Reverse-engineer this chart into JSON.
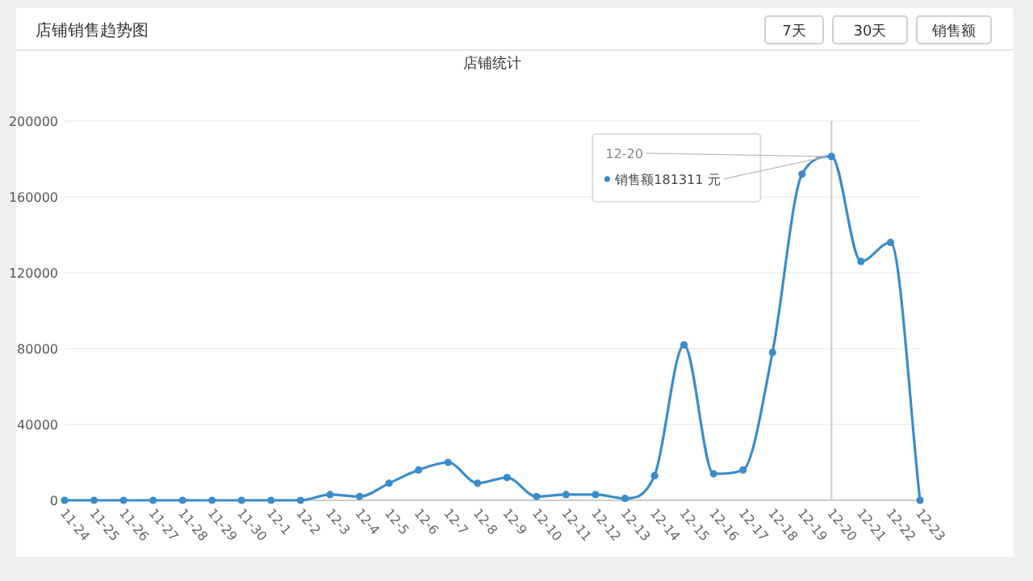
{
  "chart_data": {
    "type": "line",
    "title": "店铺销售趋势图",
    "subtitle": "店铺统计",
    "categories": [
      "11-24",
      "11-25",
      "11-26",
      "11-27",
      "11-28",
      "11-29",
      "11-30",
      "12-1",
      "12-2",
      "12-3",
      "12-4",
      "12-5",
      "12-6",
      "12-7",
      "12-8",
      "12-9",
      "12-10",
      "12-11",
      "12-12",
      "12-13",
      "12-14",
      "12-15",
      "12-16",
      "12-17",
      "12-18",
      "12-19",
      "12-20",
      "12-21",
      "12-22",
      "12-23"
    ],
    "series": [
      {
        "color": "#3a8ccb",
        "values": [
          0,
          0,
          0,
          0,
          0,
          0,
          0,
          0,
          0,
          3000,
          2000,
          9000,
          16000,
          20000,
          9000,
          12000,
          2000,
          3000,
          3000,
          1000,
          13000,
          82000,
          14000,
          16000,
          78000,
          172000,
          181311,
          126000,
          136000,
          0
        ]
      }
    ],
    "ylim": [
      0,
      200000
    ],
    "yticks": [
      0,
      40000,
      80000,
      120000,
      160000,
      200000
    ],
    "grid": "y",
    "marker": "circle",
    "line_style": "solid",
    "ref_lines": [
      {
        "axis": "x",
        "value": "12-20",
        "color": "#cccccc"
      }
    ],
    "annotations": [
      "7天",
      "30天",
      "销售额",
      {
        "text": "12-20",
        "x": "12-20",
        "y": 181311
      },
      {
        "text": "销售额181311 元",
        "x": "12-20",
        "y": 181311
      }
    ]
  }
}
